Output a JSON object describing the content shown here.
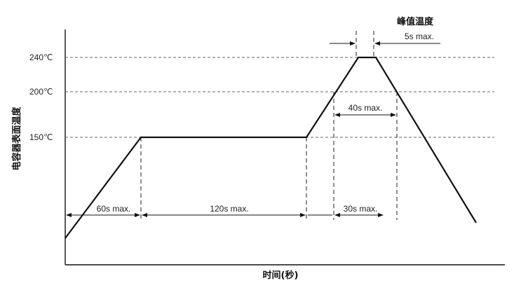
{
  "y_axis_title": "电容器表面温度",
  "x_axis_title": "时间(秒)",
  "temperature_levels": [
    "240℃",
    "200℃",
    "150℃"
  ],
  "peak_label": "峰值温度",
  "peak_duration": "5s max.",
  "duration_above_200": "40s max.",
  "ramp_up_time": "60s max.",
  "preheat_time": "120s max.",
  "ramp_to_peak_time": "30s max."
}
